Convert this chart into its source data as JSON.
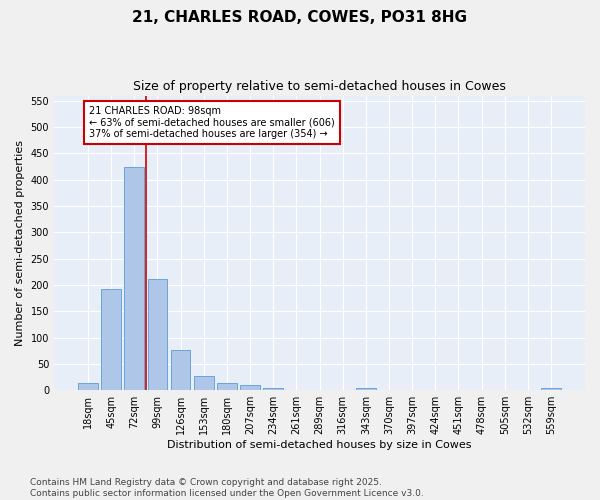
{
  "title": "21, CHARLES ROAD, COWES, PO31 8HG",
  "subtitle": "Size of property relative to semi-detached houses in Cowes",
  "xlabel": "Distribution of semi-detached houses by size in Cowes",
  "ylabel": "Number of semi-detached properties",
  "categories": [
    "18sqm",
    "45sqm",
    "72sqm",
    "99sqm",
    "126sqm",
    "153sqm",
    "180sqm",
    "207sqm",
    "234sqm",
    "261sqm",
    "289sqm",
    "316sqm",
    "343sqm",
    "370sqm",
    "397sqm",
    "424sqm",
    "451sqm",
    "478sqm",
    "505sqm",
    "532sqm",
    "559sqm"
  ],
  "values": [
    13,
    193,
    425,
    212,
    77,
    27,
    13,
    10,
    4,
    0,
    0,
    0,
    5,
    0,
    0,
    0,
    0,
    0,
    0,
    0,
    4
  ],
  "bar_color": "#aec6e8",
  "bar_edge_color": "#5b9bd5",
  "vline_color": "#cc0000",
  "annotation_text": "21 CHARLES ROAD: 98sqm\n← 63% of semi-detached houses are smaller (606)\n37% of semi-detached houses are larger (354) →",
  "annotation_bg": "#ffffff",
  "ylim": [
    0,
    560
  ],
  "yticks": [
    0,
    50,
    100,
    150,
    200,
    250,
    300,
    350,
    400,
    450,
    500,
    550
  ],
  "footer": "Contains HM Land Registry data © Crown copyright and database right 2025.\nContains public sector information licensed under the Open Government Licence v3.0.",
  "bg_color": "#e8eef8",
  "grid_color": "#ffffff",
  "title_fontsize": 11,
  "subtitle_fontsize": 9,
  "axis_label_fontsize": 8,
  "tick_fontsize": 7,
  "footer_fontsize": 6.5,
  "annotation_fontsize": 7
}
